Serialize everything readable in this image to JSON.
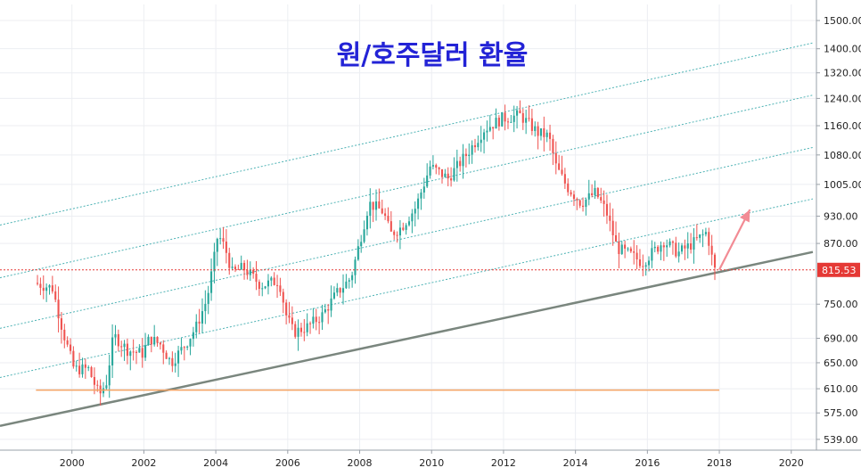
{
  "chart_data": {
    "type": "candlestick",
    "title": "원/호주달러 환율",
    "xlabel": "",
    "ylabel": "",
    "scale": "log",
    "y_ticks": [
      "1500.00",
      "1400.00",
      "1320.00",
      "1240.00",
      "1160.00",
      "1080.00",
      "1005.00",
      "930.00",
      "870.00",
      "815.53",
      "750.00",
      "690.00",
      "650.00",
      "610.00",
      "575.00",
      "539.00"
    ],
    "y_tick_values": [
      1500,
      1400,
      1320,
      1240,
      1160,
      1080,
      1005,
      930,
      870,
      815.53,
      750,
      690,
      650,
      610,
      575,
      539
    ],
    "x_ticks": [
      "2000",
      "2002",
      "2004",
      "2006",
      "2008",
      "2010",
      "2012",
      "2014",
      "2016",
      "2018",
      "2020"
    ],
    "x_tick_values": [
      2000,
      2002,
      2004,
      2006,
      2008,
      2010,
      2012,
      2014,
      2016,
      2018,
      2020
    ],
    "xlim": [
      1998,
      2020.7
    ],
    "ylim": [
      525,
      1560
    ],
    "last_price": "815.53",
    "last_price_value": 815.53,
    "colors": {
      "up": "#26a69a",
      "down": "#ef5350",
      "price_line": "#e53935",
      "support": "#7a867e",
      "channel": "#4fb3b5",
      "horizontal": "#f4a261",
      "arrow": "#f28b94",
      "title": "#2323d6"
    },
    "series": [
      {
        "name": "",
        "points": [
          [
            1999.0,
            790
          ],
          [
            1999.5,
            780
          ],
          [
            1999.8,
            700
          ],
          [
            2000.1,
            640
          ],
          [
            2000.5,
            640
          ],
          [
            2000.8,
            600
          ],
          [
            2001.0,
            620
          ],
          [
            2001.2,
            695
          ],
          [
            2001.6,
            670
          ],
          [
            2002.0,
            665
          ],
          [
            2002.2,
            690
          ],
          [
            2002.5,
            680
          ],
          [
            2002.8,
            650
          ],
          [
            2003.2,
            680
          ],
          [
            2003.5,
            710
          ],
          [
            2003.8,
            760
          ],
          [
            2004.0,
            840
          ],
          [
            2004.1,
            890
          ],
          [
            2004.3,
            860
          ],
          [
            2004.5,
            810
          ],
          [
            2004.8,
            820
          ],
          [
            2005.3,
            785
          ],
          [
            2005.8,
            795
          ],
          [
            2006.0,
            730
          ],
          [
            2006.2,
            700
          ],
          [
            2006.6,
            710
          ],
          [
            2007.0,
            730
          ],
          [
            2007.4,
            770
          ],
          [
            2007.8,
            800
          ],
          [
            2008.0,
            860
          ],
          [
            2008.3,
            960
          ],
          [
            2008.7,
            940
          ],
          [
            2008.9,
            890
          ],
          [
            2009.2,
            905
          ],
          [
            2009.6,
            950
          ],
          [
            2010.0,
            1050
          ],
          [
            2010.5,
            1020
          ],
          [
            2011.0,
            1080
          ],
          [
            2011.5,
            1150
          ],
          [
            2012.0,
            1180
          ],
          [
            2012.5,
            1190
          ],
          [
            2013.0,
            1140
          ],
          [
            2013.3,
            1130
          ],
          [
            2013.5,
            1050
          ],
          [
            2013.8,
            1000
          ],
          [
            2014.2,
            960
          ],
          [
            2014.6,
            985
          ],
          [
            2014.9,
            940
          ],
          [
            2015.2,
            860
          ],
          [
            2015.6,
            845
          ],
          [
            2015.9,
            830
          ],
          [
            2016.1,
            845
          ],
          [
            2016.5,
            875
          ],
          [
            2016.9,
            850
          ],
          [
            2017.3,
            870
          ],
          [
            2017.7,
            895
          ],
          [
            2017.9,
            815.53
          ]
        ]
      }
    ],
    "support_line": [
      [
        1998.0,
        557
      ],
      [
        2020.6,
        852
      ]
    ],
    "channel_lines": [
      [
        [
          1998.0,
          627
        ],
        [
          2020.6,
          970
        ]
      ],
      [
        [
          1998.0,
          707
        ],
        [
          2020.6,
          1100
        ]
      ],
      [
        [
          1998.0,
          800
        ],
        [
          2020.6,
          1250
        ]
      ],
      [
        [
          1998.0,
          910
        ],
        [
          2020.6,
          1420
        ]
      ]
    ],
    "horizontal_line": {
      "y": 608,
      "x": [
        1999.0,
        2018.0
      ]
    },
    "price_line": {
      "y": 815.53
    },
    "arrow": [
      [
        2018.0,
        816
      ],
      [
        2018.85,
        945
      ]
    ],
    "grid": true
  }
}
